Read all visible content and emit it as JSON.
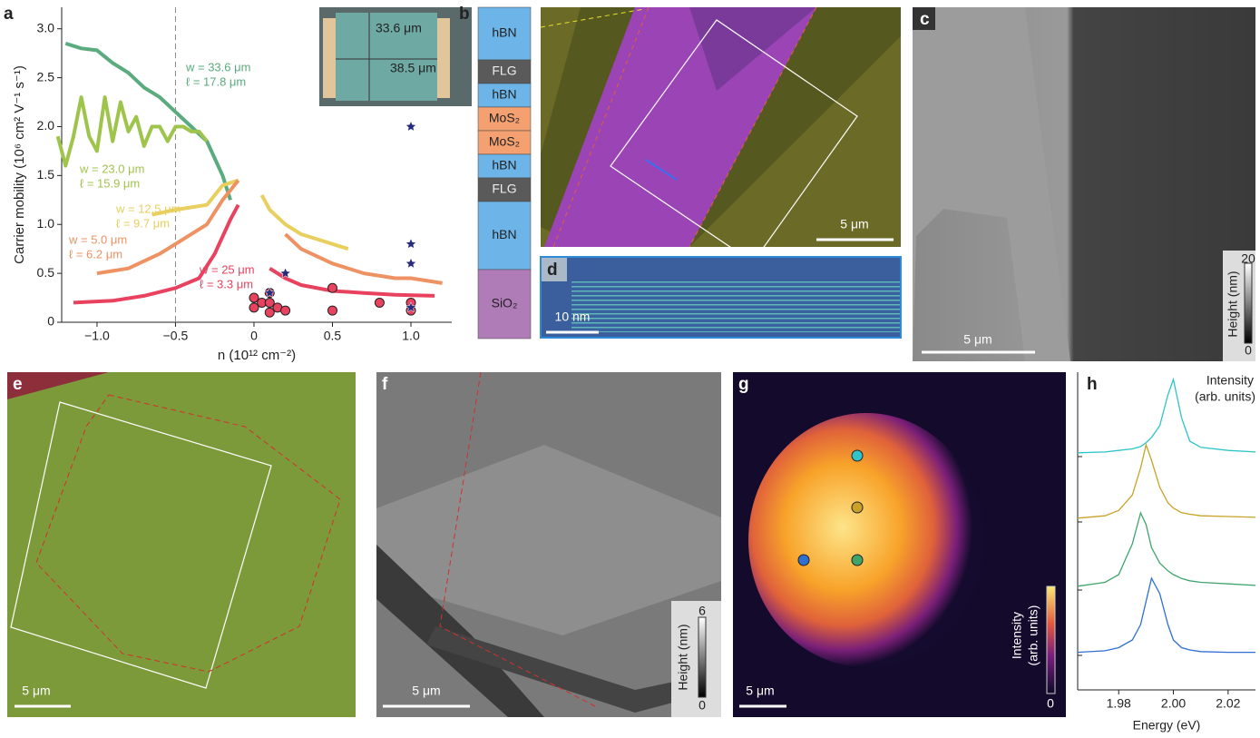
{
  "chart_data": [
    {
      "type": "line",
      "x_label": "n (10¹² cm⁻²)",
      "y_label": "Carrier mobility (10⁶ cm² V⁻¹ s⁻¹)",
      "xlim": [
        -1.225,
        1.26
      ],
      "ylim": [
        0,
        3.22
      ],
      "xticks": [
        {
          "value": -1.0,
          "label": "−1.0"
        },
        {
          "value": -0.5,
          "label": "−0.5"
        },
        0,
        0.5,
        {
          "value": 1.0,
          "label": "1.0"
        }
      ],
      "yticks": [
        0,
        0.5,
        {
          "value": 1.0,
          "label": "1.0"
        },
        1.5,
        {
          "value": 2.0,
          "label": "2.0"
        },
        2.5,
        {
          "value": 3.0,
          "label": "3.0"
        }
      ],
      "vline": -0.5,
      "series": [
        {
          "name": "w = 33.6 μm",
          "length": "ℓ = 17.8 μm",
          "color": "#5aab7e",
          "x": [
            -1.2,
            -1.1,
            -1.0,
            -0.9,
            -0.8,
            -0.7,
            -0.6,
            -0.5,
            -0.4,
            -0.3,
            -0.2,
            -0.15
          ],
          "values": [
            2.85,
            2.8,
            2.78,
            2.65,
            2.55,
            2.4,
            2.3,
            2.15,
            2.0,
            1.85,
            1.5,
            1.25
          ]
        },
        {
          "name": "w = 23.0 μm",
          "length": "ℓ = 15.9 μm",
          "color": "#9fc44c",
          "x": [
            -1.25,
            -1.2,
            -1.15,
            -1.1,
            -1.05,
            -1.0,
            -0.95,
            -0.9,
            -0.85,
            -0.8,
            -0.75,
            -0.7,
            -0.65,
            -0.6,
            -0.55,
            -0.5,
            -0.45,
            -0.4,
            -0.35,
            -0.3
          ],
          "values": [
            1.9,
            1.6,
            1.9,
            2.3,
            1.9,
            1.75,
            2.3,
            1.85,
            2.25,
            1.95,
            2.1,
            1.8,
            2.0,
            2.0,
            1.85,
            2.0,
            2.0,
            1.95,
            1.95,
            1.85
          ]
        },
        {
          "name": "w = 12.5 μm",
          "length": "ℓ =  9.7 μm",
          "color": "#e8cf5e",
          "x": [
            -0.65,
            -0.5,
            -0.3,
            -0.2,
            -0.1,
            0,
            0.05,
            0.1,
            0.2,
            0.3,
            0.4,
            0.5,
            0.6
          ],
          "values": [
            1.1,
            1.15,
            1.2,
            1.4,
            1.45,
            null,
            1.3,
            1.15,
            1.0,
            0.9,
            0.85,
            0.8,
            0.75
          ]
        },
        {
          "name": "w = 5.0 μm",
          "length": "ℓ = 6.2 μm",
          "color": "#ee9264",
          "x": [
            -1.0,
            -0.8,
            -0.6,
            -0.5,
            -0.3,
            -0.2,
            -0.1,
            0,
            0.2,
            0.3,
            0.5,
            0.7,
            0.9,
            1.0,
            1.2
          ],
          "values": [
            0.5,
            0.55,
            0.7,
            0.8,
            1.0,
            1.25,
            1.45,
            null,
            0.9,
            0.75,
            0.6,
            0.5,
            0.45,
            0.45,
            0.4
          ]
        },
        {
          "name": "w = 25 μm",
          "length": "ℓ = 3.3 μm",
          "color": "#e8425f",
          "x": [
            -1.15,
            -0.9,
            -0.7,
            -0.5,
            -0.35,
            -0.25,
            -0.15,
            -0.1,
            0,
            0.1,
            0.2,
            0.3,
            0.5,
            0.7,
            0.9,
            1.15
          ],
          "values": [
            0.2,
            0.22,
            0.27,
            0.35,
            0.45,
            0.7,
            1.05,
            1.2,
            null,
            0.55,
            0.45,
            0.38,
            0.32,
            0.3,
            0.28,
            0.27
          ]
        }
      ],
      "points": {
        "color": "#e8425f",
        "x": [
          0,
          0,
          0.05,
          0.1,
          0.1,
          0.1,
          0.15,
          0.2,
          0.5,
          0.5,
          0.8,
          1.0,
          1.0
        ],
        "values": [
          0.25,
          0.15,
          0.2,
          0.3,
          0.2,
          0.1,
          0.15,
          0.12,
          0.35,
          0.12,
          0.2,
          0.2,
          0.12
        ]
      },
      "stars": {
        "color": "#2a2a7a",
        "x": [
          0.2,
          0.1,
          1.0,
          1.0,
          1.0,
          1.0
        ],
        "values": [
          0.5,
          0.3,
          2.0,
          0.8,
          0.6,
          0.15
        ]
      }
    },
    {
      "type": "line",
      "x_label": "Energy (eV)",
      "annotation": [
        "Intensity",
        "(arb. units)"
      ],
      "xlim": [
        1.965,
        2.03
      ],
      "xticks": [
        1.98,
        {
          "value": 2.0,
          "label": "2.00"
        },
        2.02
      ],
      "x": [
        1.965,
        1.975,
        1.98,
        1.985,
        1.988,
        1.99,
        1.992,
        1.995,
        1.998,
        2.0,
        2.003,
        2.006,
        2.01,
        2.02,
        2.03
      ],
      "series": [
        {
          "color": "#2ec4c9",
          "values": [
            0.05,
            0.06,
            0.08,
            0.1,
            0.13,
            0.18,
            0.25,
            0.4,
            0.8,
            1.0,
            0.5,
            0.2,
            0.12,
            0.08,
            0.06
          ]
        },
        {
          "color": "#c9a227",
          "values": [
            0.05,
            0.08,
            0.15,
            0.35,
            0.7,
            1.0,
            0.8,
            0.45,
            0.25,
            0.18,
            0.12,
            0.1,
            0.08,
            0.07,
            0.06
          ]
        },
        {
          "color": "#3fa56b",
          "values": [
            0.05,
            0.1,
            0.2,
            0.6,
            1.0,
            0.85,
            0.55,
            0.35,
            0.25,
            0.2,
            0.15,
            0.12,
            0.1,
            0.08,
            0.06
          ]
        },
        {
          "color": "#2f6fd0",
          "values": [
            0.04,
            0.06,
            0.1,
            0.2,
            0.4,
            0.7,
            1.0,
            0.8,
            0.4,
            0.2,
            0.1,
            0.07,
            0.05,
            0.04,
            0.04
          ]
        }
      ]
    }
  ],
  "figure": {
    "panel_labels": [
      "a",
      "b",
      "c",
      "d",
      "e",
      "f",
      "g",
      "h"
    ],
    "inset": {
      "height": "33.6 μm",
      "width": "38.5 μm"
    },
    "stack": [
      "hBN",
      "FLG",
      "hBN",
      "MoS₂",
      "MoS₂",
      "hBN",
      "FLG",
      "hBN",
      "SiO₂"
    ],
    "scale_bars": {
      "b": "5 μm",
      "c": "5 μm",
      "d": "10 nm",
      "e": "5 μm",
      "f": "5 μm",
      "g": "5 μm"
    },
    "colorbar_c": {
      "label": "Height (nm)",
      "max": "20",
      "min": "0"
    },
    "colorbar_f": {
      "label": "Height (nm)",
      "max": "6",
      "min": "0"
    },
    "colorbar_g": {
      "label": "Intensity",
      "label2": "(arb. units)",
      "min": "0"
    }
  }
}
